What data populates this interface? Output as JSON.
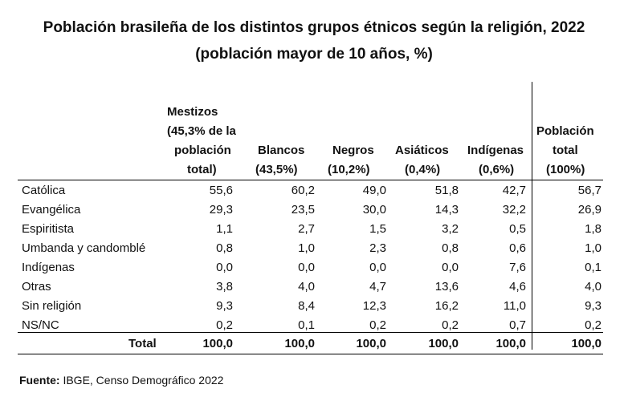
{
  "title_line1": "Población brasileña de los distintos grupos étnicos según la religión, 2022",
  "title_line2": "(población mayor de 10 años, %)",
  "headers": [
    [
      "Mestizos",
      "(45,3% de la",
      "población",
      "total)"
    ],
    [
      "Blancos",
      "(43,5%)"
    ],
    [
      "Negros",
      "(10,2%)"
    ],
    [
      "Asiáticos",
      "(0,4%)"
    ],
    [
      "Indígenas",
      "(0,6%)"
    ],
    [
      "Población",
      "total",
      "(100%)"
    ]
  ],
  "rows": [
    {
      "label": "Católica",
      "values": [
        "55,6",
        "60,2",
        "49,0",
        "51,8",
        "42,7",
        "56,7"
      ]
    },
    {
      "label": "Evangélica",
      "values": [
        "29,3",
        "23,5",
        "30,0",
        "14,3",
        "32,2",
        "26,9"
      ]
    },
    {
      "label": "Espiritista",
      "values": [
        "1,1",
        "2,7",
        "1,5",
        "3,2",
        "0,5",
        "1,8"
      ]
    },
    {
      "label": "Umbanda y candomblé",
      "values": [
        "0,8",
        "1,0",
        "2,3",
        "0,8",
        "0,6",
        "1,0"
      ]
    },
    {
      "label": "Indígenas",
      "values": [
        "0,0",
        "0,0",
        "0,0",
        "0,0",
        "7,6",
        "0,1"
      ]
    },
    {
      "label": "Otras",
      "values": [
        "3,8",
        "4,0",
        "4,7",
        "13,6",
        "4,6",
        "4,0"
      ]
    },
    {
      "label": "Sin religión",
      "values": [
        "9,3",
        "8,4",
        "12,3",
        "16,2",
        "11,0",
        "9,3"
      ]
    },
    {
      "label": "NS/NC",
      "values": [
        "0,2",
        "0,1",
        "0,2",
        "0,2",
        "0,7",
        "0,2"
      ]
    }
  ],
  "total": {
    "label": "Total",
    "values": [
      "100,0",
      "100,0",
      "100,0",
      "100,0",
      "100,0",
      "100,0"
    ]
  },
  "source": {
    "label": "Fuente:",
    "text": " IBGE, Censo Demográfico 2022"
  }
}
